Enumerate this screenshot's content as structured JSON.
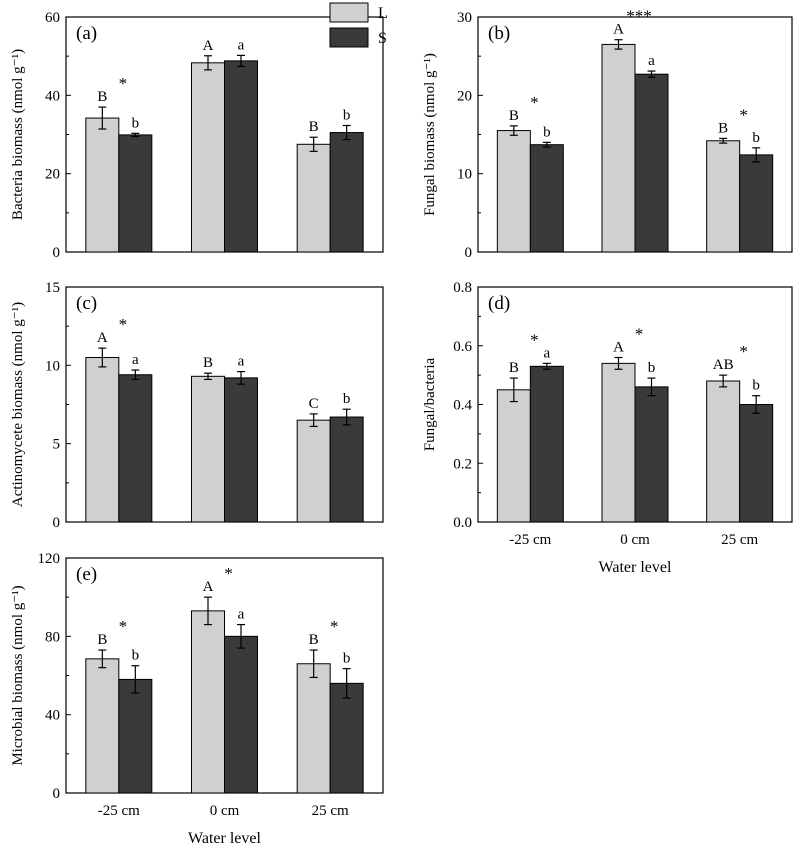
{
  "figure": {
    "xlabel": "Water level",
    "categories": [
      "-25 cm",
      "0 cm",
      "25 cm"
    ],
    "legend": [
      {
        "label": "L",
        "color": "#d0d0d0"
      },
      {
        "label": "S",
        "color": "#3a3a3a"
      }
    ]
  },
  "chart_data": [
    {
      "type": "bar",
      "panel": "(a)",
      "ylabel": "Bacteria biomass (nmol g⁻¹)",
      "ylim": [
        0,
        60
      ],
      "yticks": [
        0,
        20,
        40,
        60
      ],
      "categories": [
        "-25 cm",
        "0 cm",
        "25 cm"
      ],
      "series": [
        {
          "name": "L",
          "values": [
            34.2,
            48.3,
            27.5
          ],
          "errors": [
            2.8,
            1.8,
            1.8
          ],
          "letters": [
            "B",
            "A",
            "B"
          ]
        },
        {
          "name": "S",
          "values": [
            29.9,
            48.8,
            30.5
          ],
          "errors": [
            0.4,
            1.4,
            1.8
          ],
          "letters": [
            "b",
            "a",
            "b"
          ]
        }
      ],
      "stars": [
        "*",
        "",
        ""
      ]
    },
    {
      "type": "bar",
      "panel": "(b)",
      "ylabel": "Fungal biomass (nmol g⁻¹)",
      "ylim": [
        0,
        30
      ],
      "yticks": [
        0,
        10,
        20,
        30
      ],
      "categories": [
        "-25 cm",
        "0 cm",
        "25 cm"
      ],
      "series": [
        {
          "name": "L",
          "values": [
            15.5,
            26.5,
            14.2
          ],
          "errors": [
            0.6,
            0.6,
            0.3
          ],
          "letters": [
            "B",
            "A",
            "B"
          ]
        },
        {
          "name": "S",
          "values": [
            13.7,
            22.7,
            12.4
          ],
          "errors": [
            0.3,
            0.4,
            0.9
          ],
          "letters": [
            "b",
            "a",
            "b"
          ]
        }
      ],
      "stars": [
        "*",
        "***",
        "*"
      ]
    },
    {
      "type": "bar",
      "panel": "(c)",
      "ylabel": "Actinomycete biomass (nmol g⁻¹)",
      "ylim": [
        0,
        15
      ],
      "yticks": [
        0,
        5,
        10,
        15
      ],
      "categories": [
        "-25 cm",
        "0 cm",
        "25 cm"
      ],
      "series": [
        {
          "name": "L",
          "values": [
            10.5,
            9.3,
            6.5
          ],
          "errors": [
            0.6,
            0.2,
            0.4
          ],
          "letters": [
            "A",
            "B",
            "C"
          ]
        },
        {
          "name": "S",
          "values": [
            9.4,
            9.2,
            6.7
          ],
          "errors": [
            0.3,
            0.4,
            0.5
          ],
          "letters": [
            "a",
            "a",
            "b"
          ]
        }
      ],
      "stars": [
        "*",
        "",
        ""
      ]
    },
    {
      "type": "bar",
      "panel": "(d)",
      "ylabel": "Fungal/bacteria",
      "ylim": [
        0,
        0.8
      ],
      "yticks": [
        0.0,
        0.2,
        0.4,
        0.6,
        0.8
      ],
      "categories": [
        "-25 cm",
        "0 cm",
        "25 cm"
      ],
      "series": [
        {
          "name": "L",
          "values": [
            0.45,
            0.54,
            0.48
          ],
          "errors": [
            0.04,
            0.02,
            0.02
          ],
          "letters": [
            "B",
            "A",
            "AB"
          ]
        },
        {
          "name": "S",
          "values": [
            0.53,
            0.46,
            0.4
          ],
          "errors": [
            0.01,
            0.03,
            0.03
          ],
          "letters": [
            "a",
            "b",
            "b"
          ]
        }
      ],
      "stars": [
        "*",
        "*",
        "*"
      ]
    },
    {
      "type": "bar",
      "panel": "(e)",
      "ylabel": "Microbial biomass (nmol g⁻¹)",
      "ylim": [
        0,
        120
      ],
      "yticks": [
        0,
        40,
        80,
        120
      ],
      "categories": [
        "-25 cm",
        "0 cm",
        "25 cm"
      ],
      "series": [
        {
          "name": "L",
          "values": [
            68.5,
            93,
            66
          ],
          "errors": [
            4.5,
            7,
            7
          ],
          "letters": [
            "B",
            "A",
            "B"
          ]
        },
        {
          "name": "S",
          "values": [
            58,
            80,
            56
          ],
          "errors": [
            7,
            6,
            7.5
          ],
          "letters": [
            "b",
            "a",
            "b"
          ]
        }
      ],
      "stars": [
        "*",
        "*",
        "*"
      ]
    }
  ]
}
